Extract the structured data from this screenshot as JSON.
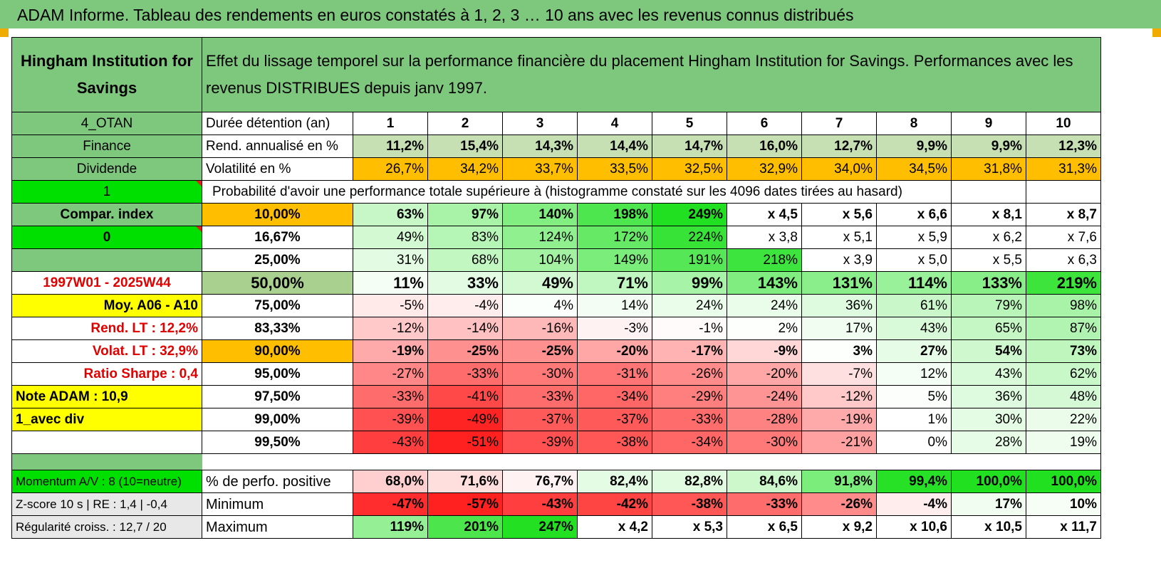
{
  "title": "ADAM Informe. Tableau des rendements en euros constatés à 1, 2, 3 … 10 ans avec les revenus connus distribués",
  "colors": {
    "header_green": "#7ec87e",
    "bright_green": "#00e000",
    "orange": "#ffbf00",
    "yellow": "#ffff00",
    "red_text": "#e00000",
    "pale_green": "#c6e0b4",
    "median_green": "#a9d08e"
  },
  "header": {
    "fund_name": "Hingham Institution for Savings",
    "description": "Effet du lissage temporel sur la performance financière du placement Hingham Institution for Savings. Performances avec les revenus DISTRIBUES depuis janv 1997."
  },
  "years": [
    "1",
    "2",
    "3",
    "4",
    "5",
    "6",
    "7",
    "8",
    "9",
    "10"
  ],
  "rows": {
    "duration": {
      "side": "4_OTAN",
      "label": "Durée détention (an)"
    },
    "annualized": {
      "side": "Finance",
      "label": "Rend. annualisé en %",
      "values": [
        "11,2%",
        "15,4%",
        "14,3%",
        "14,4%",
        "14,7%",
        "16,0%",
        "12,7%",
        "9,9%",
        "9,9%",
        "12,3%"
      ]
    },
    "volatility": {
      "side": "Dividende",
      "label": "Volatilité en %",
      "values": [
        "26,7%",
        "34,2%",
        "33,7%",
        "33,5%",
        "32,5%",
        "32,9%",
        "34,0%",
        "34,5%",
        "31,8%",
        "31,3%"
      ]
    },
    "prob_header": {
      "side": "1",
      "label": "Probabilité d'avoir une performance totale supérieure à (histogramme constaté sur les 4096 dates tirées au hasard)"
    }
  },
  "percentile_rows": [
    {
      "side": "Compar. index",
      "pct": "10,00%",
      "values": [
        "63%",
        "97%",
        "140%",
        "198%",
        "249%",
        "x 4,5",
        "x 5,6",
        "x 6,6",
        "x 8,1",
        "x 8,7"
      ]
    },
    {
      "side": "0",
      "pct": "16,67%",
      "values": [
        "49%",
        "83%",
        "124%",
        "172%",
        "224%",
        "x 3,8",
        "x 5,1",
        "x 5,9",
        "x 6,2",
        "x 7,6"
      ]
    },
    {
      "side": "",
      "pct": "25,00%",
      "values": [
        "31%",
        "68%",
        "104%",
        "149%",
        "191%",
        "218%",
        "x 3,9",
        "x 5,0",
        "x 5,5",
        "x 6,3"
      ]
    },
    {
      "side": "1997W01 - 2025W44",
      "pct": "50,00%",
      "values": [
        "11%",
        "33%",
        "49%",
        "71%",
        "99%",
        "143%",
        "131%",
        "114%",
        "133%",
        "219%"
      ]
    },
    {
      "side": "Moy. A06 - A10",
      "pct": "75,00%",
      "values": [
        "-5%",
        "-4%",
        "4%",
        "14%",
        "24%",
        "24%",
        "36%",
        "61%",
        "79%",
        "98%"
      ]
    },
    {
      "side": "Rend. LT :    12,2%",
      "pct": "83,33%",
      "values": [
        "-12%",
        "-14%",
        "-16%",
        "-3%",
        "-1%",
        "2%",
        "17%",
        "43%",
        "65%",
        "87%"
      ]
    },
    {
      "side": "Volat. LT :    32,9%",
      "pct": "90,00%",
      "values": [
        "-19%",
        "-25%",
        "-25%",
        "-20%",
        "-17%",
        "-9%",
        "3%",
        "27%",
        "54%",
        "73%"
      ]
    },
    {
      "side": "Ratio Sharpe :     0,4",
      "pct": "95,00%",
      "values": [
        "-27%",
        "-33%",
        "-30%",
        "-31%",
        "-26%",
        "-20%",
        "-7%",
        "12%",
        "43%",
        "62%"
      ]
    },
    {
      "side": "Note ADAM : 10,9",
      "pct": "97,50%",
      "values": [
        "-33%",
        "-41%",
        "-33%",
        "-34%",
        "-29%",
        "-24%",
        "-12%",
        "5%",
        "36%",
        "48%"
      ]
    },
    {
      "side": "1_avec div",
      "pct": "99,00%",
      "values": [
        "-39%",
        "-49%",
        "-37%",
        "-37%",
        "-33%",
        "-28%",
        "-19%",
        "1%",
        "30%",
        "22%"
      ]
    },
    {
      "side": "",
      "pct": "99,50%",
      "values": [
        "-43%",
        "-51%",
        "-39%",
        "-38%",
        "-34%",
        "-30%",
        "-21%",
        "0%",
        "28%",
        "19%"
      ]
    }
  ],
  "bottom_rows": [
    {
      "side": "Momentum A/V : 8 (10=neutre)",
      "label": "% de perfo. positive",
      "values": [
        "68,0%",
        "71,6%",
        "76,7%",
        "82,4%",
        "82,8%",
        "84,6%",
        "91,8%",
        "99,4%",
        "100,0%",
        "100,0%"
      ]
    },
    {
      "side": "Z-score 10 s | RE : 1,4 | -0,4",
      "label": "Minimum",
      "values": [
        "-47%",
        "-57%",
        "-43%",
        "-42%",
        "-38%",
        "-33%",
        "-26%",
        "-4%",
        "17%",
        "10%"
      ]
    },
    {
      "side": "Régularité croiss. : 12,7 / 20",
      "label": "Maximum",
      "values": [
        "119%",
        "201%",
        "247%",
        "x 4,2",
        "x 5,3",
        "x 6,5",
        "x 9,2",
        "x 10,6",
        "x 10,5",
        "x 11,7"
      ]
    }
  ]
}
